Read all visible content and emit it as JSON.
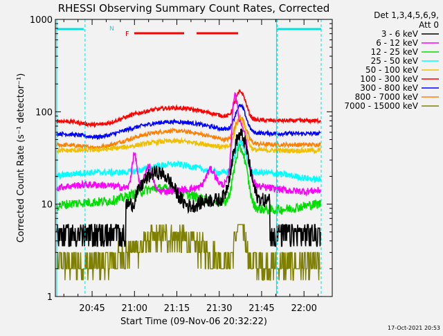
{
  "chart_data": {
    "type": "line",
    "title": "RHESSI Observing Summary Count Rates, Corrected",
    "xlabel": "Start Time (09-Nov-06 20:32:22)",
    "ylabel": "Corrected Count Rate (s⁻¹ detector⁻¹)",
    "yscale": "log",
    "ylim": [
      1,
      1000
    ],
    "xlim": [
      "20:32",
      "22:10"
    ],
    "x_ticks": [
      "20:45",
      "21:00",
      "21:15",
      "21:30",
      "21:45",
      "22:00"
    ],
    "y_ticks": [
      "1",
      "10",
      "100",
      "1000"
    ],
    "legend_position": "right",
    "legend_header": [
      "Det 1,3,4,5,6,9,",
      "Att 0"
    ],
    "series": [
      {
        "name": "3 - 6 keV",
        "color": "#000000"
      },
      {
        "name": "6 - 12 keV",
        "color": "#ff00ff"
      },
      {
        "name": "12 - 25 keV",
        "color": "#00e000"
      },
      {
        "name": "25 - 50 keV",
        "color": "#00ffff"
      },
      {
        "name": "50 - 100 keV",
        "color": "#f0c000"
      },
      {
        "name": "100 - 300 keV",
        "color": "#ff0000"
      },
      {
        "name": "300 - 800 keV",
        "color": "#0000ff"
      },
      {
        "name": "800 - 7000 keV",
        "color": "#ff8000"
      },
      {
        "name": "7000 - 15000 keV",
        "color": "#808000"
      }
    ],
    "annotations": {
      "night_marker": "N",
      "flare_marker": "F",
      "timestamp": "17-Oct-2021 20:53"
    }
  }
}
